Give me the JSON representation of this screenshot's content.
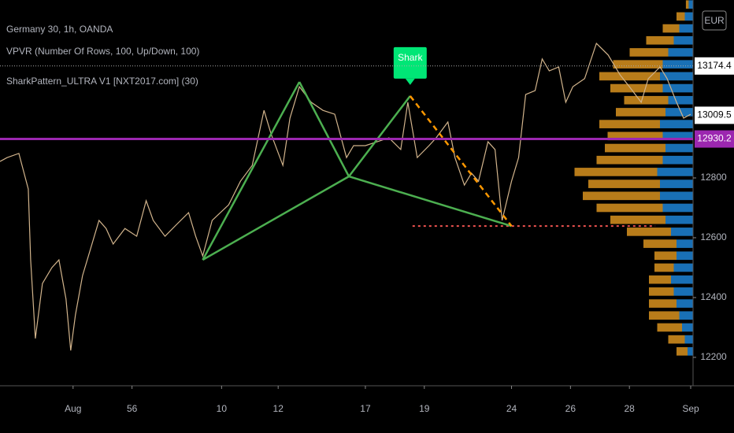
{
  "chart_data": {
    "type": "line",
    "title": "Germany 30, 1h, OANDA",
    "indicators": [
      "VPVR (Number Of Rows, 100, Up/Down, 100)",
      "SharkPattern_ULTRA V1 [NXT2017.com] (30)"
    ],
    "currency": "EUR",
    "color": "#d2b48c",
    "x": [
      0,
      3,
      8,
      12,
      13,
      15,
      18,
      22,
      25,
      28,
      30,
      32,
      35,
      38,
      42,
      45,
      48,
      53,
      58,
      62,
      65,
      70,
      75,
      80,
      83,
      86,
      90,
      97,
      102,
      107,
      112,
      115,
      120,
      123,
      127,
      132,
      137,
      142,
      147,
      150,
      155,
      160,
      165,
      170,
      173,
      177,
      182,
      185,
      190,
      193,
      197,
      200,
      203,
      207,
      210,
      213,
      217,
      220,
      223,
      227,
      230,
      233,
      237,
      240,
      243,
      248,
      253,
      258,
      263,
      267,
      272,
      275,
      280,
      283,
      287,
      290,
      293
    ],
    "values": [
      12855,
      12868,
      12882,
      12763,
      12526,
      12263,
      12447,
      12500,
      12526,
      12395,
      12223,
      12342,
      12473,
      12552,
      12658,
      12631,
      12579,
      12631,
      12605,
      12724,
      12658,
      12605,
      12645,
      12684,
      12605,
      12539,
      12658,
      12710,
      12789,
      12842,
      13026,
      12947,
      12842,
      13000,
      13105,
      13053,
      13026,
      13013,
      12868,
      12908,
      12908,
      12921,
      12934,
      12895,
      13053,
      12868,
      12908,
      12934,
      12987,
      12868,
      12776,
      12816,
      12789,
      12921,
      12895,
      12658,
      12789,
      12868,
      13079,
      13092,
      13198,
      13158,
      13171,
      13053,
      13105,
      13132,
      13250,
      13211,
      13145,
      13105,
      13053,
      13132,
      13171,
      13132,
      13053,
      13000,
      13013
    ],
    "xlim": [
      0,
      294
    ],
    "ylim": [
      12105,
      13395
    ],
    "yticks": [
      12200,
      12400,
      12600,
      12800
    ],
    "xticks": [
      {
        "value": 31,
        "label": "Aug"
      },
      56,
      {
        "value": 94,
        "label": "10"
      },
      {
        "value": 118,
        "label": "12"
      },
      {
        "value": 155,
        "label": "17"
      },
      {
        "value": 180,
        "label": "19"
      },
      {
        "value": 217,
        "label": "24"
      },
      {
        "value": 242,
        "label": "26"
      },
      {
        "value": 267,
        "label": "28"
      },
      {
        "value": 293,
        "label": "Sep"
      }
    ],
    "price_labels": [
      {
        "value": 13174.4,
        "color": "#ffffff",
        "text_color": "#000000",
        "line": "dotted"
      },
      {
        "value": 13009.5,
        "color": "#ffffff",
        "text_color": "#000000"
      },
      {
        "value": 12930.2,
        "color": "#9c27b0",
        "text_color": "#ffffff",
        "line": "solid"
      }
    ],
    "pattern": {
      "name": "Shark",
      "color": "#4caf50",
      "dash_color": "#ff9800",
      "label_color": "#00e676",
      "x": [
        86,
        127,
        148,
        174,
        217
      ],
      "values": [
        12526,
        13121,
        12805,
        13074,
        12639
      ]
    },
    "level": {
      "value": 12639,
      "x": [
        175,
        278
      ],
      "color": "#ef5350"
    },
    "volume_profile": {
      "up_color": "#2196f3",
      "down_color": "#f5a623",
      "rows": [
        12220,
        12260,
        12300,
        12340,
        12380,
        12420,
        12460,
        12500,
        12540,
        12580,
        12620,
        12660,
        12700,
        12740,
        12780,
        12820,
        12860,
        12900,
        12940,
        12980,
        13020,
        13060,
        13100,
        13140,
        13180,
        13220,
        13260,
        13300,
        13340,
        13380
      ],
      "up": [
        10,
        15,
        20,
        25,
        30,
        35,
        40,
        35,
        30,
        30,
        40,
        50,
        55,
        60,
        60,
        65,
        55,
        50,
        55,
        60,
        50,
        45,
        55,
        60,
        55,
        45,
        35,
        25,
        15,
        8
      ],
      "down": [
        20,
        30,
        45,
        55,
        50,
        45,
        40,
        35,
        40,
        60,
        80,
        100,
        120,
        140,
        130,
        150,
        120,
        110,
        100,
        110,
        90,
        80,
        95,
        110,
        90,
        70,
        50,
        30,
        15,
        5
      ]
    }
  }
}
